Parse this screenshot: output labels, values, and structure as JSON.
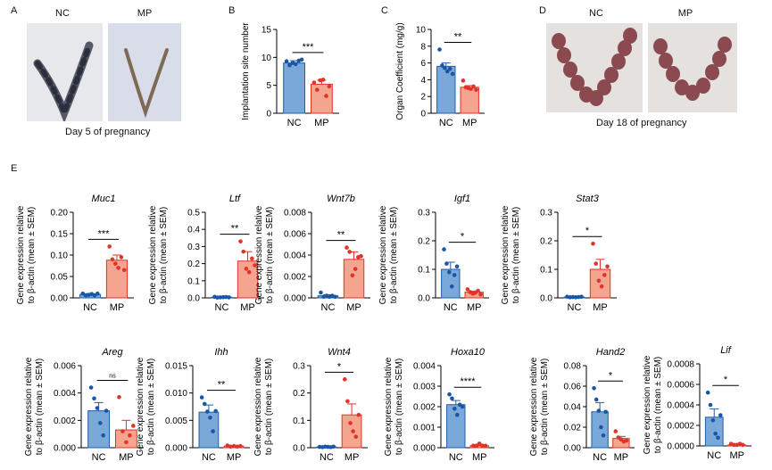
{
  "panels": {
    "A": {
      "letter": "A",
      "labels": [
        "NC",
        "MP"
      ],
      "caption": "Day 5 of pregnancy"
    },
    "B": {
      "letter": "B"
    },
    "C": {
      "letter": "C"
    },
    "D": {
      "letter": "D",
      "labels": [
        "NC",
        "MP"
      ],
      "caption": "Day 18 of pregnancy"
    },
    "E": {
      "letter": "E"
    }
  },
  "colors": {
    "nc_fill": "#7aa8d8",
    "nc_edge": "#1f5fa8",
    "nc_dot": "#1a56a6",
    "mp_fill": "#f4a48f",
    "mp_edge": "#e0342a",
    "mp_dot": "#e0342a"
  },
  "chart_data": [
    {
      "id": "B",
      "type": "bar",
      "title": "",
      "ylabel": "Implantation site number",
      "categories": [
        "NC",
        "MP"
      ],
      "values": [
        9,
        5.2
      ],
      "errors": [
        0.4,
        0.7
      ],
      "points": [
        [
          9.3,
          8.6,
          9.0,
          8.8,
          9.4,
          9.6
        ],
        [
          5.5,
          4.2,
          5.9,
          6.0,
          3.1,
          4.8
        ]
      ],
      "ylim": [
        0,
        15
      ],
      "yticks": [
        "0",
        "5",
        "10",
        "15"
      ],
      "significance": "***"
    },
    {
      "id": "C",
      "type": "bar",
      "title": "",
      "ylabel": "Organ Coefficient (mg/g)",
      "categories": [
        "NC",
        "MP"
      ],
      "values": [
        5.6,
        3.1
      ],
      "errors": [
        0.4,
        0.2
      ],
      "points": [
        [
          7.6,
          5.7,
          5.4,
          5.0,
          5.3,
          4.7
        ],
        [
          3.9,
          3.1,
          3.0,
          2.9,
          3.2,
          2.8
        ]
      ],
      "ylim": [
        0,
        10
      ],
      "yticks": [
        "0",
        "2",
        "4",
        "6",
        "8",
        "10"
      ],
      "significance": "**"
    },
    {
      "id": "Muc1",
      "type": "bar",
      "title": "Muc1",
      "ylabel": "Gene expression relative|to β-actin (mean ± SEM)",
      "categories": [
        "NC",
        "MP"
      ],
      "values": [
        0.008,
        0.088
      ],
      "errors": [
        0.002,
        0.012
      ],
      "points": [
        [
          0.01,
          0.006,
          0.007,
          0.009,
          0.006,
          0.01
        ],
        [
          0.12,
          0.09,
          0.08,
          0.07,
          0.095,
          0.065
        ]
      ],
      "ylim": [
        0,
        0.2
      ],
      "yticks": [
        "0.00",
        "0.05",
        "0.10",
        "0.15",
        "0.20"
      ],
      "significance": "***"
    },
    {
      "id": "Ltf",
      "type": "bar",
      "title": "Ltf",
      "ylabel": "Gene expression relative|to β-actin (mean ± SEM)",
      "categories": [
        "NC",
        "MP"
      ],
      "values": [
        0.004,
        0.215
      ],
      "errors": [
        0.002,
        0.055
      ],
      "points": [
        [
          0.006,
          0.002,
          0.003,
          0.004,
          0.005,
          0.003
        ],
        [
          0.33,
          0.27,
          0.17,
          0.15,
          0.23,
          0.19
        ]
      ],
      "ylim": [
        0,
        0.5
      ],
      "yticks": [
        "0.0",
        "0.1",
        "0.2",
        "0.3",
        "0.4",
        "0.5"
      ],
      "significance": "**"
    },
    {
      "id": "Wnt7b",
      "type": "bar",
      "title": "Wnt7b",
      "ylabel": "Gene expression relative|to β-actin (mean ± SEM)",
      "categories": [
        "NC",
        "MP"
      ],
      "values": [
        0.0002,
        0.0036
      ],
      "errors": [
        0.0001,
        0.0007
      ],
      "points": [
        [
          0.0005,
          0.0001,
          0.0002,
          0.0001,
          0.0002,
          0.0001
        ],
        [
          0.0047,
          0.0043,
          0.0021,
          0.0027,
          0.0038,
          0.0039
        ]
      ],
      "ylim": [
        0,
        0.008
      ],
      "yticks": [
        "0.000",
        "0.002",
        "0.004",
        "0.006",
        "0.008"
      ],
      "significance": "**"
    },
    {
      "id": "Igf1",
      "type": "bar",
      "title": "Igf1",
      "ylabel": "Gene expression relative|to β-actin (mean ± SEM)",
      "categories": [
        "NC",
        "MP"
      ],
      "values": [
        0.1,
        0.02
      ],
      "errors": [
        0.025,
        0.004
      ],
      "points": [
        [
          0.17,
          0.12,
          0.09,
          0.04,
          0.08,
          0.11
        ],
        [
          0.03,
          0.02,
          0.015,
          0.018,
          0.025,
          0.012
        ]
      ],
      "ylim": [
        0,
        0.3
      ],
      "yticks": [
        "0.0",
        "0.1",
        "0.2",
        "0.3"
      ],
      "significance": "*"
    },
    {
      "id": "Stat3",
      "type": "bar",
      "title": "Stat3",
      "ylabel": "Gene expression relative|to β-actin (mean ± SEM)",
      "categories": [
        "NC",
        "MP"
      ],
      "values": [
        0.003,
        0.1
      ],
      "errors": [
        0.001,
        0.035
      ],
      "points": [
        [
          0.004,
          0.002,
          0.003,
          0.002,
          0.003,
          0.004
        ],
        [
          0.19,
          0.12,
          0.06,
          0.04,
          0.08,
          0.11
        ]
      ],
      "ylim": [
        0,
        0.3
      ],
      "yticks": [
        "0.0",
        "0.1",
        "0.2",
        "0.3"
      ],
      "significance": "*"
    },
    {
      "id": "Areg",
      "type": "bar",
      "title": "Areg",
      "ylabel": "Gene expression relative|to β-actin (mean ± SEM)",
      "categories": [
        "NC",
        "MP"
      ],
      "values": [
        0.0027,
        0.0013
      ],
      "errors": [
        0.0006,
        0.0007
      ],
      "points": [
        [
          0.0044,
          0.0036,
          0.0029,
          0.0018,
          0.0009,
          0.0027
        ],
        [
          0.0037,
          0.0012,
          0.0004,
          0.0009,
          0.0016
        ]
      ],
      "ylim": [
        0,
        0.006
      ],
      "yticks": [
        "0.000",
        "0.002",
        "0.004",
        "0.006"
      ],
      "significance": "ns"
    },
    {
      "id": "Ihh",
      "type": "bar",
      "title": "Ihh",
      "ylabel": "Gene expression relative|to β-actin (mean ± SEM)",
      "categories": [
        "NC",
        "MP"
      ],
      "values": [
        0.0065,
        0.0003
      ],
      "errors": [
        0.0013,
        0.0001
      ],
      "points": [
        [
          0.0092,
          0.008,
          0.0066,
          0.0055,
          0.003,
          0.0067
        ],
        [
          0.0004,
          0.0002,
          0.0003,
          0.0002,
          0.0003
        ]
      ],
      "ylim": [
        0,
        0.015
      ],
      "yticks": [
        "0.000",
        "0.005",
        "0.010",
        "0.015"
      ],
      "significance": "**"
    },
    {
      "id": "Wnt4",
      "type": "bar",
      "title": "Wnt4",
      "ylabel": "Gene expression relative|to β-actin (mean ± SEM)",
      "categories": [
        "NC",
        "MP"
      ],
      "values": [
        0.003,
        0.12
      ],
      "errors": [
        0.001,
        0.04
      ],
      "points": [
        [
          0.003,
          0.002,
          0.004,
          0.003,
          0.002,
          0.004
        ],
        [
          0.25,
          0.17,
          0.09,
          0.06,
          0.04,
          0.12
        ]
      ],
      "ylim": [
        0,
        0.3
      ],
      "yticks": [
        "0.0",
        "0.1",
        "0.2",
        "0.3"
      ],
      "significance": "*"
    },
    {
      "id": "Hoxa10",
      "type": "bar",
      "title": "Hoxa10",
      "ylabel": "Gene expression relative|to β-actin (mean ± SEM)",
      "categories": [
        "NC",
        "MP"
      ],
      "values": [
        0.0021,
        0.0001
      ],
      "errors": [
        0.0002,
        3e-05
      ],
      "points": [
        [
          0.0026,
          0.0024,
          0.0019,
          0.0016,
          0.0021,
          0.002
        ],
        [
          0.0001,
          0.0001,
          0.0002,
          0.0001,
          0.0001
        ]
      ],
      "ylim": [
        0,
        0.004
      ],
      "yticks": [
        "0.000",
        "0.001",
        "0.002",
        "0.003",
        "0.004"
      ],
      "significance": "****"
    },
    {
      "id": "Hand2",
      "type": "bar",
      "title": "Hand2",
      "ylabel": "Gene expression relative|to β-actin (mean ± SEM)",
      "categories": [
        "NC",
        "MP"
      ],
      "values": [
        0.035,
        0.009
      ],
      "errors": [
        0.009,
        0.002
      ],
      "points": [
        [
          0.058,
          0.047,
          0.036,
          0.02,
          0.012,
          0.035
        ],
        [
          0.016,
          0.01,
          0.008,
          0.006,
          0.007
        ]
      ],
      "ylim": [
        0,
        0.08
      ],
      "yticks": [
        "0.00",
        "0.02",
        "0.04",
        "0.06",
        "0.08"
      ],
      "significance": "*"
    },
    {
      "id": "Lif",
      "type": "bar",
      "title": "Lif",
      "ylabel": "Gene expression relative|to β-actin (mean ± SEM)",
      "categories": [
        "NC",
        "MP"
      ],
      "values": [
        0.00028,
        1e-05
      ],
      "errors": [
        8e-05,
        5e-06
      ],
      "points": [
        [
          0.00052,
          0.0004,
          0.00025,
          0.00012,
          8e-05,
          0.0003
        ],
        [
          2e-05,
          1e-05,
          1e-05,
          2e-05,
          1e-05
        ]
      ],
      "ylim": [
        0,
        0.0008
      ],
      "yticks": [
        "0.0000",
        "0.0002",
        "0.0004",
        "0.0006",
        "0.0008"
      ],
      "significance": "*"
    }
  ]
}
